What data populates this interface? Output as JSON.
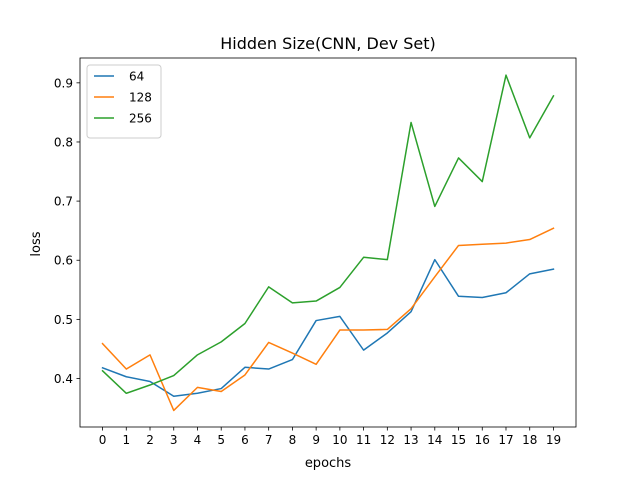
{
  "chart_data": {
    "type": "line",
    "title": "Hidden Size(CNN, Dev Set)",
    "xlabel": "epochs",
    "ylabel": "loss",
    "x": [
      0,
      1,
      2,
      3,
      4,
      5,
      6,
      7,
      8,
      9,
      10,
      11,
      12,
      13,
      14,
      15,
      16,
      17,
      18,
      19
    ],
    "xticks": [
      "0",
      "1",
      "2",
      "3",
      "4",
      "5",
      "6",
      "7",
      "8",
      "9",
      "10",
      "11",
      "12",
      "13",
      "14",
      "15",
      "16",
      "17",
      "18",
      "19"
    ],
    "xlim": [
      -0.95,
      19.95
    ],
    "ylim": [
      0.318,
      0.942
    ],
    "yticks": [
      0.4,
      0.5,
      0.6,
      0.7,
      0.8,
      0.9
    ],
    "ytick_labels": [
      "0.4",
      "0.5",
      "0.6",
      "0.7",
      "0.8",
      "0.9"
    ],
    "grid": false,
    "legend_position": "top-left",
    "series": [
      {
        "name": "64",
        "color": "#1f77b4",
        "values": [
          0.418,
          0.403,
          0.395,
          0.37,
          0.375,
          0.383,
          0.419,
          0.416,
          0.432,
          0.498,
          0.505,
          0.448,
          0.477,
          0.513,
          0.601,
          0.539,
          0.537,
          0.545,
          0.577,
          0.585
        ]
      },
      {
        "name": "128",
        "color": "#ff7f0e",
        "values": [
          0.459,
          0.416,
          0.44,
          0.346,
          0.385,
          0.378,
          0.406,
          0.461,
          0.443,
          0.424,
          0.482,
          0.482,
          0.483,
          0.518,
          0.572,
          0.625,
          0.627,
          0.629,
          0.635,
          0.654
        ]
      },
      {
        "name": "256",
        "color": "#2ca02c",
        "values": [
          0.413,
          0.375,
          0.389,
          0.405,
          0.44,
          0.462,
          0.493,
          0.555,
          0.528,
          0.531,
          0.554,
          0.605,
          0.601,
          0.833,
          0.691,
          0.773,
          0.733,
          0.913,
          0.807,
          0.878
        ]
      }
    ]
  }
}
